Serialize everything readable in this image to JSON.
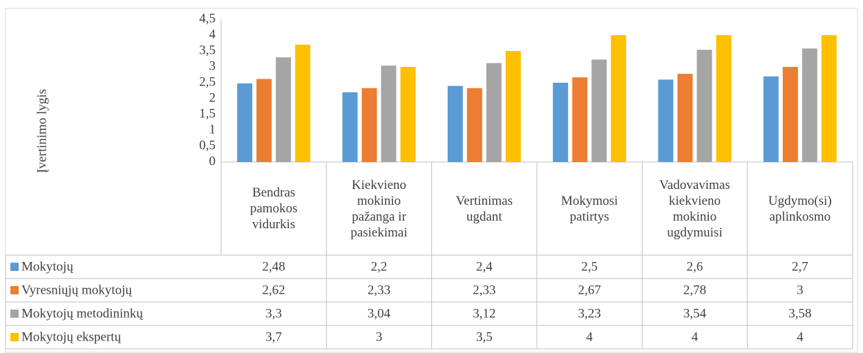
{
  "chart_data": {
    "type": "bar",
    "y_label": "Įvertinimo lygis",
    "categories": [
      "Bendras pamokos vidurkis",
      "Kiekvieno mokinio pažanga ir pasiekimai",
      "Vertinimas ugdant",
      "Mokymosi patirtys",
      "Vadovavimas kiekvieno mokinio ugdymuisi",
      "Ugdymo(si) aplinkosmo"
    ],
    "series": [
      {
        "name": "Mokytojų",
        "color": "#5b9bd5",
        "values": [
          2.48,
          2.2,
          2.4,
          2.5,
          2.6,
          2.7
        ],
        "value_labels": [
          "2,48",
          "2,2",
          "2,4",
          "2,5",
          "2,6",
          "2,7"
        ]
      },
      {
        "name": "Vyresniųjų mokytojų",
        "color": "#ed7d31",
        "values": [
          2.62,
          2.33,
          2.33,
          2.67,
          2.78,
          3
        ],
        "value_labels": [
          "2,62",
          "2,33",
          "2,33",
          "2,67",
          "2,78",
          "3"
        ]
      },
      {
        "name": "Mokytojų metodininkų",
        "color": "#a5a5a5",
        "values": [
          3.3,
          3.04,
          3.12,
          3.23,
          3.54,
          3.58
        ],
        "value_labels": [
          "3,3",
          "3,04",
          "3,12",
          "3,23",
          "3,54",
          "3,58"
        ]
      },
      {
        "name": "Mokytojų ekspertų",
        "color": "#ffc000",
        "values": [
          3.7,
          3,
          3.5,
          4,
          4,
          4
        ],
        "value_labels": [
          "3,7",
          "3",
          "3,5",
          "4",
          "4",
          "4"
        ]
      }
    ],
    "ylim": [
      0,
      4.5
    ],
    "yticks": [
      0,
      {
        "value": 0.5,
        "label": "0,5"
      },
      1,
      {
        "value": 1.5,
        "label": "1,5"
      },
      2,
      {
        "value": 2.5,
        "label": "2,5"
      },
      3,
      {
        "value": 3.5,
        "label": "3,5"
      },
      4,
      {
        "value": 4.5,
        "label": "4,5"
      }
    ],
    "grid": false
  }
}
